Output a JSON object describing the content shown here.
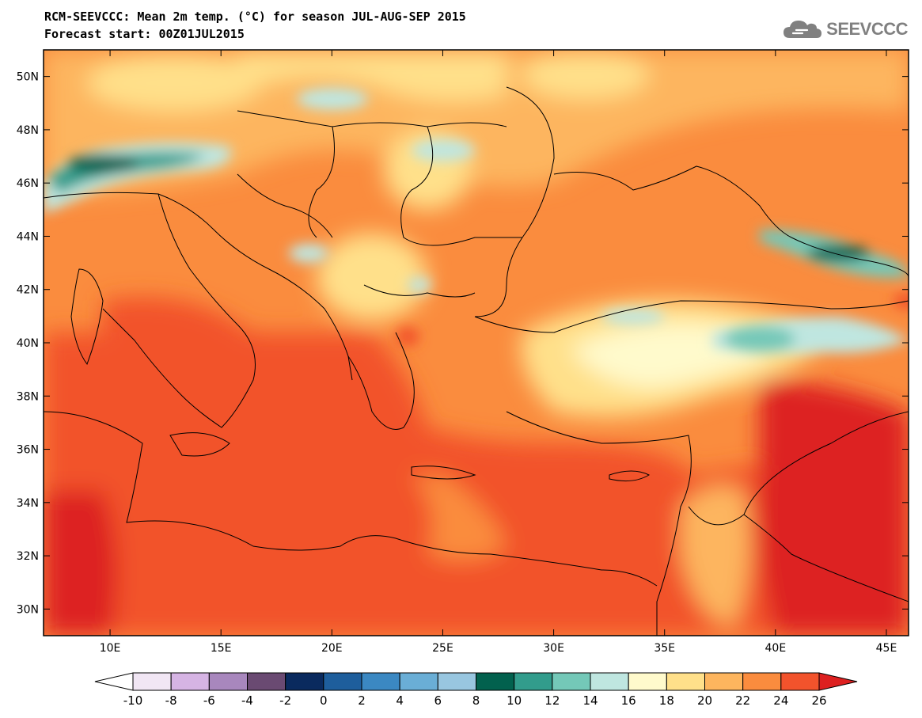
{
  "title_line1": "RCM-SEEVCCC: Mean 2m temp. (°C) for season JUL-AUG-SEP 2015",
  "title_line2": "Forecast start: 00Z01JUL2015",
  "logo": {
    "text": "SEEVCCC",
    "icon": "cloud-icon",
    "color": "#808080"
  },
  "map": {
    "lon_range": [
      7,
      46
    ],
    "lat_range": [
      29,
      51
    ],
    "lon_ticks": [
      {
        "value": 10,
        "label": "10E"
      },
      {
        "value": 15,
        "label": "15E"
      },
      {
        "value": 20,
        "label": "20E"
      },
      {
        "value": 25,
        "label": "25E"
      },
      {
        "value": 30,
        "label": "30E"
      },
      {
        "value": 35,
        "label": "35E"
      },
      {
        "value": 40,
        "label": "40E"
      },
      {
        "value": 45,
        "label": "45E"
      }
    ],
    "lat_ticks": [
      {
        "value": 30,
        "label": "30N"
      },
      {
        "value": 32,
        "label": "32N"
      },
      {
        "value": 34,
        "label": "34N"
      },
      {
        "value": 36,
        "label": "36N"
      },
      {
        "value": 38,
        "label": "38N"
      },
      {
        "value": 40,
        "label": "40N"
      },
      {
        "value": 42,
        "label": "42N"
      },
      {
        "value": 44,
        "label": "44N"
      },
      {
        "value": 46,
        "label": "46N"
      },
      {
        "value": 48,
        "label": "48N"
      },
      {
        "value": 50,
        "label": "50N"
      }
    ]
  },
  "colorbar": {
    "labels": [
      "-10",
      "-8",
      "-6",
      "-4",
      "-2",
      "0",
      "2",
      "4",
      "6",
      "8",
      "10",
      "12",
      "14",
      "16",
      "18",
      "20",
      "22",
      "24",
      "26"
    ],
    "colors": [
      "#f1e6f4",
      "#d6b4e4",
      "#a887bd",
      "#6a4a72",
      "#0a2a5e",
      "#1e5e9c",
      "#3b88c2",
      "#6aaed6",
      "#98c6e0",
      "#02614e",
      "#329c8c",
      "#74c8b8",
      "#bfe6e0",
      "#fffacc",
      "#ffe08a",
      "#fdb55e",
      "#fa8c3e",
      "#f2532c"
    ],
    "under_color": "#ffffff",
    "over_color": "#dd2020"
  }
}
